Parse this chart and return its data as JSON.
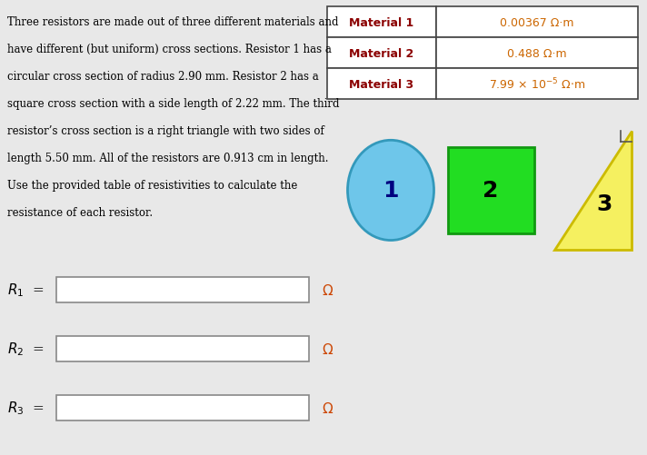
{
  "fig_w": 7.12,
  "fig_h": 5.02,
  "dpi": 100,
  "bg_color": "#e8e8e8",
  "white": "#ffffff",
  "text_color": "#000000",
  "orange_text": "#cc6600",
  "dark_bold": "#8B0000",
  "problem_text": [
    "Three resistors are made out of three different materials and",
    "have different (but uniform) cross sections. Resistor 1 has a",
    "circular cross section of radius 2.90 mm. Resistor 2 has a",
    "square cross section with a side length of 2.22 mm. The third",
    "resistor’s cross section is a right triangle with two sides of",
    "length 5.50 mm. All of the resistors are 0.913 cm in length.",
    "Use the provided table of resistivities to calculate the",
    "resistance of each resistor."
  ],
  "table_headers": [
    "Material 1",
    "Material 2",
    "Material 3"
  ],
  "table_val1": "0.00367 Ω·m",
  "table_val2": "0.488 Ω·m",
  "table_val3_pre": "7.99 × 10",
  "table_val3_post": " Ω·m",
  "circle_color": "#6EC6EA",
  "circle_edge": "#3399bb",
  "square_color": "#22dd22",
  "square_edge": "#119911",
  "triangle_color": "#f5f060",
  "triangle_edge": "#ccbb00",
  "num_color_1": "#000080",
  "num_color_23": "#000000",
  "omega_color": "#cc4400",
  "label_color": "#000000",
  "box_edge_color": "#888888"
}
